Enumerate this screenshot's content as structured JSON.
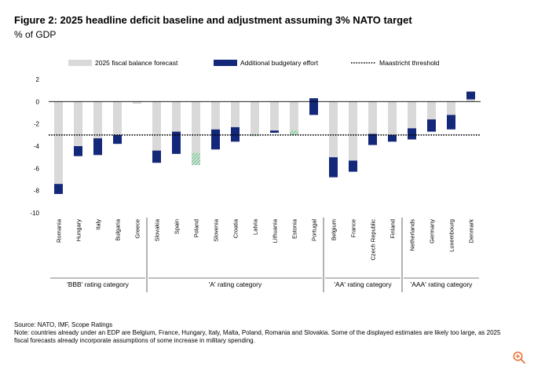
{
  "figure": {
    "title": "Figure 2: 2025 headline deficit baseline and adjustment assuming 3% NATO target",
    "subtitle": "% of GDP",
    "source": "Source: NATO, IMF, Scope Ratings",
    "note": "Note: countries already under an EDP are Belgium, France, Hungary, Italy, Malta, Poland, Romania and Slovakia. Some of the displayed estimates are likely too large, as 2025 fiscal forecasts already incorporate assumptions of some increase in military spending."
  },
  "colors": {
    "baseline": "#d9d9d9",
    "effort": "#14287a",
    "effort_above_zero": "#8dc7a6",
    "threshold": "#000000",
    "zoom_icon": "#e8743b"
  },
  "icons": {
    "zoom": "zoom-in-icon"
  },
  "chart_data": {
    "type": "bar",
    "stacked": true,
    "ylabel": "% of GDP",
    "ylim": [
      -10,
      2
    ],
    "yticks": [
      2,
      0,
      -2,
      -4,
      -6,
      -8,
      -10
    ],
    "grid": false,
    "legend_position": "top",
    "legend": [
      {
        "name": "2025 fiscal balance forecast",
        "kind": "bar"
      },
      {
        "name": "Additional budgetary effort",
        "kind": "bar"
      },
      {
        "name": "Maastricht threshold",
        "kind": "dotted-line"
      }
    ],
    "threshold": -3,
    "categories": [
      "Romania",
      "Hungary",
      "Italy",
      "Bulgaria",
      "Greece",
      "Slovakia",
      "Spain",
      "Poland",
      "Slovenia",
      "Croatia",
      "Latvia",
      "Lithuania",
      "Estonia",
      "Portugal",
      "Belgium",
      "France",
      "Czech Republic",
      "Finland",
      "Netherlands",
      "Germany",
      "Luxembourg",
      "Denmark"
    ],
    "series": [
      {
        "name": "2025 fiscal balance forecast",
        "values": [
          -7.4,
          -4.0,
          -3.3,
          -3.0,
          -0.2,
          -4.4,
          -2.7,
          -5.7,
          -2.5,
          -2.3,
          -3.1,
          -2.6,
          -3.0,
          0.3,
          -5.0,
          -5.3,
          -2.9,
          -3.0,
          -2.4,
          -1.6,
          -1.2,
          0.9
        ]
      },
      {
        "name": "Additional budgetary effort",
        "values": [
          -0.9,
          -0.9,
          -1.5,
          -0.8,
          0.0,
          -1.1,
          -2.0,
          1.1,
          -1.8,
          -1.3,
          0.1,
          -0.2,
          0.4,
          -1.5,
          -1.8,
          -1.0,
          -1.0,
          -0.6,
          -1.0,
          -1.1,
          -1.3,
          -0.7
        ]
      }
    ],
    "rating_groups": [
      {
        "label": "'BBB' rating category",
        "start": 0,
        "end": 4
      },
      {
        "label": "'A' rating category",
        "start": 5,
        "end": 13
      },
      {
        "label": "'AA' rating category",
        "start": 14,
        "end": 17
      },
      {
        "label": "'AAA' rating category",
        "start": 18,
        "end": 21
      }
    ]
  }
}
